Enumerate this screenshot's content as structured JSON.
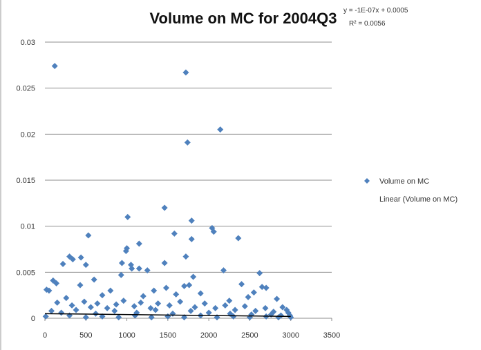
{
  "chart_data": {
    "type": "scatter",
    "title": "Volume on MC for 2004Q3",
    "xlabel": "",
    "ylabel": "",
    "xlim": [
      0,
      3500
    ],
    "ylim": [
      0,
      0.03
    ],
    "x_ticks": [
      "0",
      "500",
      "1000",
      "1500",
      "2000",
      "2500",
      "3000",
      "3500"
    ],
    "y_ticks": [
      "0",
      "0.005",
      "0.01",
      "0.015",
      "0.02",
      "0.025",
      "0.03"
    ],
    "grid": "horizontal",
    "legend_position": "right",
    "trendline": {
      "slope": -1e-07,
      "intercept": 0.0005,
      "equation_text": "y = -1E-07x + 0.0005",
      "r2_text": "R² = 0.0056"
    },
    "series": [
      {
        "name": "Volume on MC",
        "color": "#4F81BD",
        "marker": "diamond",
        "points": [
          [
            120,
            0.0274
          ],
          [
            1720,
            0.0267
          ],
          [
            2140,
            0.0205
          ],
          [
            1740,
            0.0191
          ],
          [
            1460,
            0.012
          ],
          [
            1010,
            0.011
          ],
          [
            1790,
            0.0106
          ],
          [
            2040,
            0.0098
          ],
          [
            2060,
            0.0094
          ],
          [
            1580,
            0.0092
          ],
          [
            530,
            0.009
          ],
          [
            2360,
            0.0087
          ],
          [
            1790,
            0.0086
          ],
          [
            1150,
            0.0081
          ],
          [
            1000,
            0.0076
          ],
          [
            990,
            0.0073
          ],
          [
            1720,
            0.0067
          ],
          [
            300,
            0.0067
          ],
          [
            340,
            0.0064
          ],
          [
            440,
            0.0066
          ],
          [
            940,
            0.006
          ],
          [
            1460,
            0.006
          ],
          [
            1050,
            0.0058
          ],
          [
            220,
            0.0059
          ],
          [
            500,
            0.0058
          ],
          [
            1060,
            0.0054
          ],
          [
            1150,
            0.0054
          ],
          [
            1250,
            0.0052
          ],
          [
            2180,
            0.0052
          ],
          [
            2620,
            0.0049
          ],
          [
            930,
            0.0047
          ],
          [
            1810,
            0.0045
          ],
          [
            600,
            0.0042
          ],
          [
            100,
            0.0041
          ],
          [
            140,
            0.0038
          ],
          [
            430,
            0.0036
          ],
          [
            2650,
            0.0034
          ],
          [
            2700,
            0.0033
          ],
          [
            2400,
            0.0037
          ],
          [
            1700,
            0.0035
          ],
          [
            1760,
            0.0036
          ],
          [
            1480,
            0.0033
          ],
          [
            1330,
            0.003
          ],
          [
            2550,
            0.0028
          ],
          [
            2830,
            0.0021
          ],
          [
            20,
            0.0031
          ],
          [
            50,
            0.003
          ],
          [
            260,
            0.0022
          ],
          [
            700,
            0.0025
          ],
          [
            800,
            0.003
          ],
          [
            1200,
            0.0024
          ],
          [
            1600,
            0.0026
          ],
          [
            1900,
            0.0027
          ],
          [
            2250,
            0.0019
          ],
          [
            2480,
            0.0023
          ],
          [
            2900,
            0.0012
          ],
          [
            2950,
            0.0009
          ],
          [
            2970,
            0.0006
          ],
          [
            2990,
            0.0003
          ],
          [
            150,
            0.0017
          ],
          [
            330,
            0.0014
          ],
          [
            480,
            0.0018
          ],
          [
            560,
            0.0012
          ],
          [
            640,
            0.0016
          ],
          [
            760,
            0.0011
          ],
          [
            870,
            0.0015
          ],
          [
            960,
            0.0019
          ],
          [
            1090,
            0.0013
          ],
          [
            1170,
            0.0017
          ],
          [
            1290,
            0.0011
          ],
          [
            1380,
            0.0016
          ],
          [
            1520,
            0.0014
          ],
          [
            1650,
            0.0018
          ],
          [
            1830,
            0.0012
          ],
          [
            1950,
            0.0016
          ],
          [
            2080,
            0.0011
          ],
          [
            2200,
            0.0014
          ],
          [
            2320,
            0.0009
          ],
          [
            2440,
            0.0013
          ],
          [
            2570,
            0.0008
          ],
          [
            2690,
            0.0011
          ],
          [
            2790,
            0.0007
          ],
          [
            80,
            0.0008
          ],
          [
            200,
            0.0006
          ],
          [
            380,
            0.0009
          ],
          [
            620,
            0.0005
          ],
          [
            850,
            0.0008
          ],
          [
            1120,
            0.0006
          ],
          [
            1350,
            0.0009
          ],
          [
            1560,
            0.0005
          ],
          [
            1780,
            0.0008
          ],
          [
            2000,
            0.0006
          ],
          [
            2260,
            0.0005
          ],
          [
            2520,
            0.0004
          ],
          [
            2760,
            0.0004
          ],
          [
            2880,
            0.0003
          ],
          [
            300,
            0.0003
          ],
          [
            700,
            0.0002
          ],
          [
            1100,
            0.0003
          ],
          [
            1500,
            0.0002
          ],
          [
            1900,
            0.0003
          ],
          [
            2300,
            0.0002
          ],
          [
            2700,
            0.0002
          ],
          [
            500,
            0.0001
          ],
          [
            900,
            0.0001
          ],
          [
            1300,
            0.0001
          ],
          [
            1700,
            0.0001
          ],
          [
            2100,
            0.0001
          ],
          [
            2500,
            0.0001
          ],
          [
            2850,
            0.0001
          ],
          [
            10,
            0.0002
          ],
          [
            3000,
            0.0001
          ]
        ]
      },
      {
        "name": "Linear (Volume on MC)",
        "color": "#000000",
        "type": "line"
      }
    ]
  }
}
